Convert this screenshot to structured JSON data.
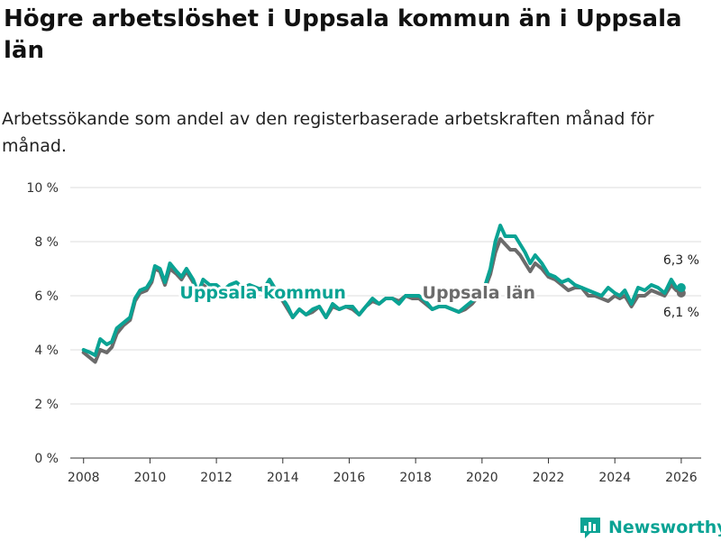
{
  "title": "Högre arbetslöshet i Uppsala kommun än i Uppsala län",
  "subtitle": "Arbetssökande som andel av den registerbaserade arbetskraften månad för månad.",
  "brand": {
    "name": "Newsworthy",
    "icon": "newsworthy-logo-icon",
    "color": "#0aa394"
  },
  "chart_data": {
    "type": "line",
    "title": "Högre arbetslöshet i Uppsala kommun än i Uppsala län",
    "xlabel": "",
    "ylabel": "",
    "xlim": [
      2007.6,
      2026.6
    ],
    "ylim": [
      0,
      10
    ],
    "x_ticks": [
      2008,
      2010,
      2012,
      2014,
      2016,
      2018,
      2020,
      2022,
      2024,
      2026
    ],
    "x_tick_labels": [
      "2008",
      "2010",
      "2012",
      "2014",
      "2016",
      "2018",
      "2020",
      "2022",
      "2024",
      "2026"
    ],
    "y_ticks": [
      0,
      2,
      4,
      6,
      8,
      10
    ],
    "y_tick_labels": [
      "0 %",
      "2 %",
      "4 %",
      "6 %",
      "8 %",
      "10 %"
    ],
    "grid": true,
    "series": [
      {
        "name": "Uppsala län",
        "color": "#6b6b6b",
        "label": "Uppsala län",
        "end_label": "6,1 %",
        "points": [
          [
            2008.0,
            3.9
          ],
          [
            2008.2,
            3.7
          ],
          [
            2008.35,
            3.55
          ],
          [
            2008.5,
            4.0
          ],
          [
            2008.7,
            3.9
          ],
          [
            2008.85,
            4.1
          ],
          [
            2009.0,
            4.6
          ],
          [
            2009.2,
            4.9
          ],
          [
            2009.4,
            5.1
          ],
          [
            2009.55,
            5.8
          ],
          [
            2009.7,
            6.1
          ],
          [
            2009.9,
            6.2
          ],
          [
            2010.05,
            6.5
          ],
          [
            2010.15,
            7.0
          ],
          [
            2010.3,
            6.9
          ],
          [
            2010.45,
            6.4
          ],
          [
            2010.6,
            7.0
          ],
          [
            2010.8,
            6.8
          ],
          [
            2010.95,
            6.6
          ],
          [
            2011.1,
            6.9
          ],
          [
            2011.3,
            6.5
          ],
          [
            2011.45,
            6.0
          ],
          [
            2011.6,
            6.4
          ],
          [
            2011.8,
            6.2
          ],
          [
            2012.0,
            6.3
          ],
          [
            2012.2,
            6.1
          ],
          [
            2012.4,
            6.3
          ],
          [
            2012.6,
            6.2
          ],
          [
            2012.8,
            6.2
          ],
          [
            2013.0,
            6.3
          ],
          [
            2013.2,
            6.2
          ],
          [
            2013.4,
            6.3
          ],
          [
            2013.6,
            6.4
          ],
          [
            2013.8,
            6.1
          ],
          [
            2014.0,
            5.8
          ],
          [
            2014.15,
            5.5
          ],
          [
            2014.3,
            5.2
          ],
          [
            2014.5,
            5.5
          ],
          [
            2014.7,
            5.3
          ],
          [
            2014.9,
            5.4
          ],
          [
            2015.1,
            5.6
          ],
          [
            2015.3,
            5.2
          ],
          [
            2015.5,
            5.6
          ],
          [
            2015.7,
            5.5
          ],
          [
            2015.9,
            5.6
          ],
          [
            2016.1,
            5.5
          ],
          [
            2016.3,
            5.3
          ],
          [
            2016.5,
            5.6
          ],
          [
            2016.7,
            5.8
          ],
          [
            2016.9,
            5.7
          ],
          [
            2017.1,
            5.9
          ],
          [
            2017.3,
            5.9
          ],
          [
            2017.5,
            5.8
          ],
          [
            2017.7,
            6.0
          ],
          [
            2017.9,
            5.9
          ],
          [
            2018.1,
            5.9
          ],
          [
            2018.3,
            5.7
          ],
          [
            2018.5,
            5.5
          ],
          [
            2018.7,
            5.6
          ],
          [
            2018.9,
            5.6
          ],
          [
            2019.1,
            5.5
          ],
          [
            2019.3,
            5.4
          ],
          [
            2019.5,
            5.5
          ],
          [
            2019.7,
            5.7
          ],
          [
            2019.9,
            6.0
          ],
          [
            2020.1,
            6.3
          ],
          [
            2020.25,
            6.8
          ],
          [
            2020.4,
            7.6
          ],
          [
            2020.55,
            8.1
          ],
          [
            2020.7,
            7.9
          ],
          [
            2020.85,
            7.7
          ],
          [
            2021.0,
            7.7
          ],
          [
            2021.15,
            7.5
          ],
          [
            2021.3,
            7.2
          ],
          [
            2021.45,
            6.9
          ],
          [
            2021.6,
            7.2
          ],
          [
            2021.8,
            7.0
          ],
          [
            2022.0,
            6.7
          ],
          [
            2022.2,
            6.6
          ],
          [
            2022.4,
            6.4
          ],
          [
            2022.6,
            6.2
          ],
          [
            2022.8,
            6.3
          ],
          [
            2023.0,
            6.3
          ],
          [
            2023.2,
            6.0
          ],
          [
            2023.4,
            6.0
          ],
          [
            2023.6,
            5.9
          ],
          [
            2023.8,
            5.8
          ],
          [
            2024.0,
            6.0
          ],
          [
            2024.15,
            5.9
          ],
          [
            2024.3,
            6.0
          ],
          [
            2024.5,
            5.6
          ],
          [
            2024.7,
            6.0
          ],
          [
            2024.9,
            6.0
          ],
          [
            2025.1,
            6.2
          ],
          [
            2025.3,
            6.1
          ],
          [
            2025.5,
            6.0
          ],
          [
            2025.7,
            6.4
          ],
          [
            2025.85,
            6.2
          ],
          [
            2026.0,
            6.1
          ]
        ]
      },
      {
        "name": "Uppsala kommun",
        "color": "#0aa394",
        "label": "Uppsala kommun",
        "end_label": "6,3 %",
        "points": [
          [
            2008.0,
            4.0
          ],
          [
            2008.2,
            3.9
          ],
          [
            2008.35,
            3.8
          ],
          [
            2008.5,
            4.4
          ],
          [
            2008.7,
            4.2
          ],
          [
            2008.85,
            4.3
          ],
          [
            2009.0,
            4.8
          ],
          [
            2009.2,
            5.0
          ],
          [
            2009.4,
            5.2
          ],
          [
            2009.55,
            5.9
          ],
          [
            2009.7,
            6.2
          ],
          [
            2009.9,
            6.3
          ],
          [
            2010.05,
            6.6
          ],
          [
            2010.15,
            7.1
          ],
          [
            2010.3,
            7.0
          ],
          [
            2010.45,
            6.5
          ],
          [
            2010.6,
            7.2
          ],
          [
            2010.8,
            6.9
          ],
          [
            2010.95,
            6.7
          ],
          [
            2011.1,
            7.0
          ],
          [
            2011.3,
            6.6
          ],
          [
            2011.45,
            6.1
          ],
          [
            2011.6,
            6.6
          ],
          [
            2011.8,
            6.4
          ],
          [
            2012.0,
            6.4
          ],
          [
            2012.2,
            6.2
          ],
          [
            2012.4,
            6.4
          ],
          [
            2012.6,
            6.5
          ],
          [
            2012.8,
            6.3
          ],
          [
            2013.0,
            6.4
          ],
          [
            2013.2,
            6.3
          ],
          [
            2013.4,
            6.2
          ],
          [
            2013.6,
            6.6
          ],
          [
            2013.8,
            6.2
          ],
          [
            2014.0,
            5.9
          ],
          [
            2014.15,
            5.6
          ],
          [
            2014.3,
            5.2
          ],
          [
            2014.5,
            5.5
          ],
          [
            2014.7,
            5.3
          ],
          [
            2014.9,
            5.5
          ],
          [
            2015.1,
            5.6
          ],
          [
            2015.3,
            5.2
          ],
          [
            2015.5,
            5.7
          ],
          [
            2015.7,
            5.5
          ],
          [
            2015.9,
            5.6
          ],
          [
            2016.1,
            5.6
          ],
          [
            2016.3,
            5.3
          ],
          [
            2016.5,
            5.6
          ],
          [
            2016.7,
            5.9
          ],
          [
            2016.9,
            5.7
          ],
          [
            2017.1,
            5.9
          ],
          [
            2017.3,
            5.9
          ],
          [
            2017.5,
            5.7
          ],
          [
            2017.7,
            6.0
          ],
          [
            2017.9,
            6.0
          ],
          [
            2018.1,
            6.0
          ],
          [
            2018.3,
            5.8
          ],
          [
            2018.5,
            5.5
          ],
          [
            2018.7,
            5.6
          ],
          [
            2018.9,
            5.6
          ],
          [
            2019.1,
            5.5
          ],
          [
            2019.3,
            5.4
          ],
          [
            2019.5,
            5.6
          ],
          [
            2019.7,
            5.8
          ],
          [
            2019.9,
            6.0
          ],
          [
            2020.1,
            6.4
          ],
          [
            2020.25,
            7.0
          ],
          [
            2020.4,
            8.0
          ],
          [
            2020.55,
            8.6
          ],
          [
            2020.7,
            8.2
          ],
          [
            2020.85,
            8.2
          ],
          [
            2021.0,
            8.2
          ],
          [
            2021.15,
            7.9
          ],
          [
            2021.3,
            7.6
          ],
          [
            2021.45,
            7.2
          ],
          [
            2021.6,
            7.5
          ],
          [
            2021.8,
            7.2
          ],
          [
            2022.0,
            6.8
          ],
          [
            2022.2,
            6.7
          ],
          [
            2022.4,
            6.5
          ],
          [
            2022.6,
            6.6
          ],
          [
            2022.8,
            6.4
          ],
          [
            2023.0,
            6.3
          ],
          [
            2023.2,
            6.2
          ],
          [
            2023.4,
            6.1
          ],
          [
            2023.6,
            6.0
          ],
          [
            2023.8,
            6.3
          ],
          [
            2024.0,
            6.1
          ],
          [
            2024.15,
            6.0
          ],
          [
            2024.3,
            6.2
          ],
          [
            2024.5,
            5.7
          ],
          [
            2024.7,
            6.3
          ],
          [
            2024.9,
            6.2
          ],
          [
            2025.1,
            6.4
          ],
          [
            2025.3,
            6.3
          ],
          [
            2025.5,
            6.1
          ],
          [
            2025.7,
            6.6
          ],
          [
            2025.85,
            6.3
          ],
          [
            2026.0,
            6.3
          ]
        ]
      }
    ]
  }
}
